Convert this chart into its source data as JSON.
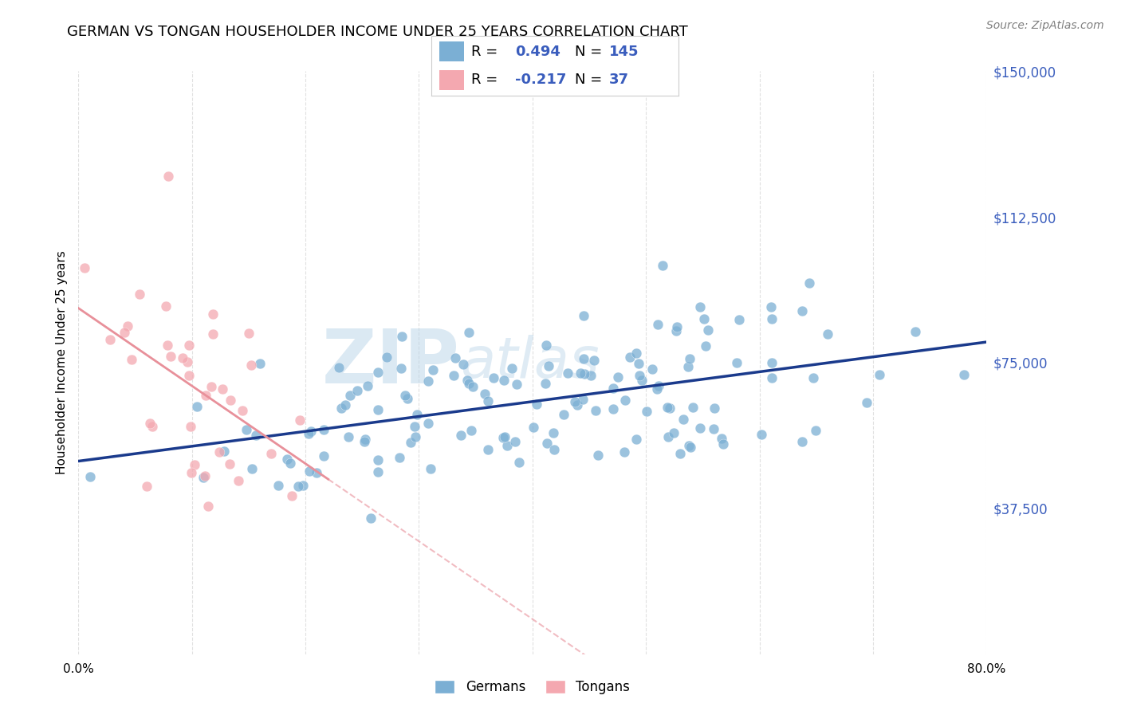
{
  "title": "GERMAN VS TONGAN HOUSEHOLDER INCOME UNDER 25 YEARS CORRELATION CHART",
  "source": "Source: ZipAtlas.com",
  "ylabel": "Householder Income Under 25 years",
  "xlim": [
    0.0,
    0.8
  ],
  "ylim": [
    0,
    150000
  ],
  "yticks": [
    0,
    37500,
    75000,
    112500,
    150000
  ],
  "ytick_labels": [
    "",
    "$37,500",
    "$75,000",
    "$112,500",
    "$150,000"
  ],
  "background_color": "#ffffff",
  "grid_color": "#cccccc",
  "watermark_text": "ZIPatlas",
  "german_color": "#7bafd4",
  "tongan_color": "#f4a8b0",
  "german_line_color": "#1a3a8c",
  "tongan_line_color": "#e8909a",
  "legend_german_R": "0.494",
  "legend_german_N": "145",
  "legend_tongan_R": "-0.217",
  "legend_tongan_N": "37",
  "stat_color": "#3a5dbd",
  "n_german": 145,
  "n_tongan": 37,
  "german_rho": 0.494,
  "tongan_rho": -0.217
}
